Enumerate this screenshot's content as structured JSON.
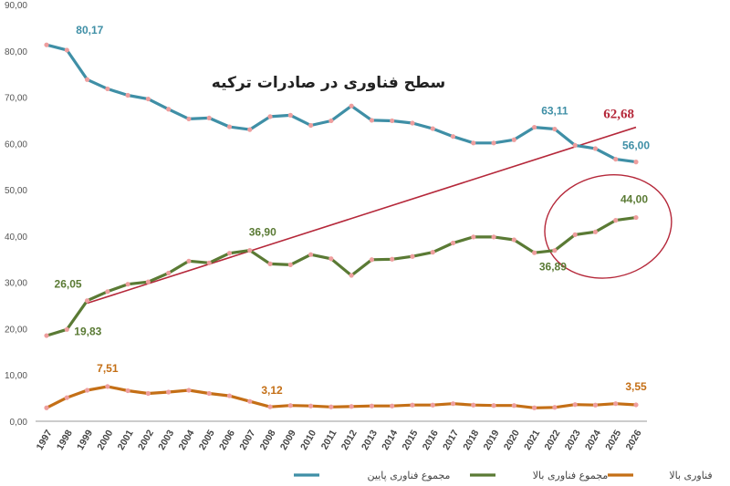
{
  "chart_data": {
    "type": "line",
    "title": "سطح فناوری در صادرات ترکیه",
    "xlabel": "",
    "ylabel": "",
    "ylim": [
      0,
      90
    ],
    "y_ticks": [
      "0,00",
      "10,00",
      "20,00",
      "30,00",
      "40,00",
      "50,00",
      "60,00",
      "70,00",
      "80,00",
      "90,00"
    ],
    "grid": false,
    "x": [
      "1997",
      "1998",
      "1999",
      "2000",
      "2001",
      "2002",
      "2003",
      "2004",
      "2005",
      "2006",
      "2007",
      "2008",
      "2009",
      "2010",
      "2011",
      "2012",
      "2013",
      "2014",
      "2015",
      "2016",
      "2017",
      "2018",
      "2019",
      "2020",
      "2021",
      "2022",
      "2023",
      "2024",
      "2025",
      "2026"
    ],
    "legend_position": "bottom",
    "series": [
      {
        "key": "low",
        "name": "مجموع فناوری پایین",
        "color": "#3f8fa6",
        "marker_color": "#ee9e9e",
        "values": [
          81.3,
          80.17,
          73.8,
          71.8,
          70.4,
          69.6,
          67.4,
          65.3,
          65.5,
          63.6,
          63.0,
          65.8,
          66.1,
          63.9,
          64.9,
          68.1,
          65.0,
          64.9,
          64.4,
          63.2,
          61.5,
          60.1,
          60.1,
          60.8,
          63.5,
          63.11,
          59.6,
          58.9,
          56.6,
          56.0
        ]
      },
      {
        "key": "mid",
        "name": "مجموع فناوری بالا",
        "color": "#5a7a34",
        "marker_color": "#ee9e9e",
        "values": [
          18.5,
          19.83,
          26.05,
          28.0,
          29.6,
          30.1,
          32.0,
          34.6,
          34.2,
          36.3,
          36.9,
          34.0,
          33.8,
          36.0,
          35.1,
          31.5,
          34.9,
          35.0,
          35.6,
          36.5,
          38.5,
          39.8,
          39.8,
          39.2,
          36.4,
          36.89,
          40.3,
          40.9,
          43.4,
          44.0
        ]
      },
      {
        "key": "high",
        "name": "فناوری بالا",
        "color": "#c46f16",
        "marker_color": "#ee9e9e",
        "values": [
          2.9,
          5.1,
          6.7,
          7.51,
          6.6,
          6.0,
          6.3,
          6.7,
          6.0,
          5.5,
          4.3,
          3.12,
          3.4,
          3.3,
          3.1,
          3.2,
          3.3,
          3.3,
          3.5,
          3.5,
          3.8,
          3.5,
          3.4,
          3.4,
          2.9,
          3.0,
          3.6,
          3.5,
          3.8,
          3.55
        ]
      }
    ],
    "data_labels": [
      {
        "series": "low",
        "x": "1998",
        "text": "80,17"
      },
      {
        "series": "low",
        "x": "2022",
        "text": "63,11"
      },
      {
        "series": "low",
        "x": "2026",
        "text": "56,00"
      },
      {
        "series": "mid",
        "x": "1999",
        "text": "26,05"
      },
      {
        "series": "mid",
        "x": "1998",
        "text": "19,83"
      },
      {
        "series": "mid",
        "x": "2007",
        "text": "36,90"
      },
      {
        "series": "mid",
        "x": "2022",
        "text": "36,89"
      },
      {
        "series": "mid",
        "x": "2026",
        "text": "44,00"
      },
      {
        "series": "high",
        "x": "2000",
        "text": "7,51"
      },
      {
        "series": "high",
        "x": "2008",
        "text": "3,12"
      },
      {
        "series": "high",
        "x": "2026",
        "text": "3,55"
      }
    ],
    "trendline": {
      "color": "#b5283a",
      "from": {
        "x": "1999",
        "y": 25.5
      },
      "to": {
        "x": "2026",
        "y": 63.5
      },
      "label": "62,68"
    },
    "highlight_ellipse": {
      "color": "#b5283a",
      "center_x": "2024",
      "center_y": 40.5
    }
  }
}
